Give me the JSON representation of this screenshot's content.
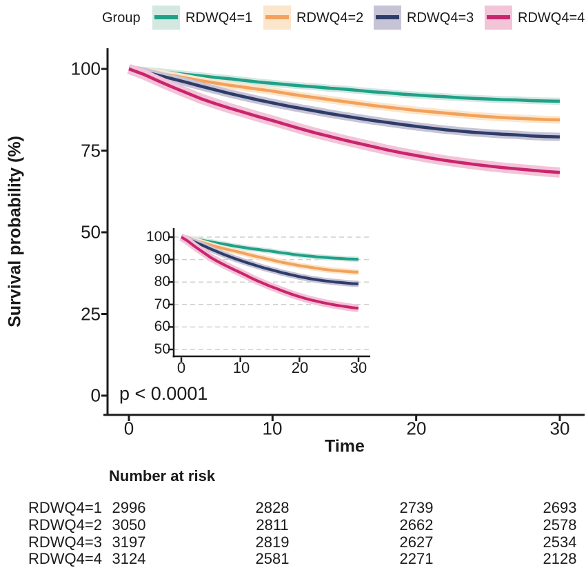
{
  "figure": {
    "background": "#ffffff",
    "text_color": "#1a1a1a",
    "axis_color": "#1b1b1b",
    "grid_color": "#cfcfcf"
  },
  "legend": {
    "title": "Group",
    "entries": [
      {
        "label": "RDWQ4=1",
        "line_color": "#1FA188",
        "band_color": "#D2E8E1"
      },
      {
        "label": "RDWQ4=2",
        "line_color": "#F2A25D",
        "band_color": "#FBE6CC"
      },
      {
        "label": "RDWQ4=3",
        "line_color": "#2E3D68",
        "band_color": "#C7C3D7"
      },
      {
        "label": "RDWQ4=4",
        "line_color": "#C9256E",
        "band_color": "#F3C3D7"
      }
    ]
  },
  "chart_data": {
    "type": "line",
    "xlabel": "Time",
    "ylabel": "Survival probability (%)",
    "xlim": [
      0,
      30
    ],
    "ylim": [
      0,
      100
    ],
    "xticks": [
      0,
      10,
      20,
      30
    ],
    "yticks": [
      0,
      25,
      50,
      75,
      100
    ],
    "grid": false,
    "legend_position": "top",
    "annotation": "p < 0.0001",
    "x": [
      0,
      1,
      2,
      3,
      4,
      5,
      6,
      7,
      8,
      9,
      10,
      11,
      12,
      13,
      14,
      15,
      16,
      17,
      18,
      19,
      20,
      21,
      22,
      23,
      24,
      25,
      26,
      27,
      28,
      29,
      30
    ],
    "series": [
      {
        "name": "RDWQ4=1",
        "line_color": "#1FA188",
        "band_color": "#D2E8E1",
        "ci_halfwidth": 0.6,
        "y": [
          100,
          99.6,
          99.2,
          98.8,
          98.3,
          97.9,
          97.4,
          97.0,
          96.5,
          96.0,
          95.6,
          95.2,
          94.8,
          94.5,
          94.1,
          93.8,
          93.4,
          93.0,
          92.7,
          92.3,
          92.0,
          91.7,
          91.5,
          91.2,
          91.0,
          90.8,
          90.6,
          90.5,
          90.3,
          90.2,
          90.1
        ]
      },
      {
        "name": "RDWQ4=2",
        "line_color": "#F2A25D",
        "band_color": "#FBE6CC",
        "ci_halfwidth": 0.7,
        "y": [
          100,
          99.4,
          98.7,
          98.0,
          97.2,
          96.4,
          95.7,
          95.0,
          94.4,
          93.8,
          93.2,
          92.5,
          91.8,
          91.2,
          90.6,
          90.0,
          89.4,
          88.8,
          88.3,
          87.8,
          87.3,
          86.9,
          86.5,
          86.1,
          85.7,
          85.4,
          85.1,
          84.9,
          84.7,
          84.5,
          84.4
        ]
      },
      {
        "name": "RDWQ4=3",
        "line_color": "#2E3D68",
        "band_color": "#C7C3D7",
        "ci_halfwidth": 0.8,
        "y": [
          100,
          99.2,
          98.1,
          97.0,
          95.9,
          94.7,
          93.6,
          92.5,
          91.5,
          90.5,
          89.6,
          88.7,
          87.9,
          87.1,
          86.3,
          85.6,
          84.9,
          84.2,
          83.6,
          83.0,
          82.4,
          81.9,
          81.4,
          81.0,
          80.6,
          80.3,
          80.0,
          79.8,
          79.5,
          79.3,
          79.2
        ]
      },
      {
        "name": "RDWQ4=4",
        "line_color": "#C9256E",
        "band_color": "#F3C3D7",
        "ci_halfwidth": 1.1,
        "y": [
          100,
          98.4,
          96.4,
          94.5,
          92.7,
          90.9,
          89.4,
          88.0,
          86.7,
          85.4,
          84.2,
          82.9,
          81.6,
          80.4,
          79.3,
          78.2,
          77.2,
          76.2,
          75.2,
          74.3,
          73.5,
          72.7,
          72.0,
          71.4,
          70.8,
          70.3,
          69.8,
          69.4,
          69.0,
          68.6,
          68.3
        ]
      }
    ],
    "inset": {
      "xticks": [
        0,
        10,
        20,
        30
      ],
      "yticks": [
        50,
        60,
        70,
        80,
        90,
        100
      ],
      "ylim": [
        50,
        100
      ],
      "grid": "dashed-horizontal"
    }
  },
  "risk_table": {
    "title": "Number at risk",
    "time_points": [
      0,
      10,
      20,
      30
    ],
    "rows": [
      {
        "label": "RDWQ4=1",
        "values": [
          2996,
          2828,
          2739,
          2693
        ]
      },
      {
        "label": "RDWQ4=2",
        "values": [
          3050,
          2811,
          2662,
          2578
        ]
      },
      {
        "label": "RDWQ4=3",
        "values": [
          3197,
          2819,
          2627,
          2534
        ]
      },
      {
        "label": "RDWQ4=4",
        "values": [
          3124,
          2581,
          2271,
          2128
        ]
      }
    ]
  }
}
